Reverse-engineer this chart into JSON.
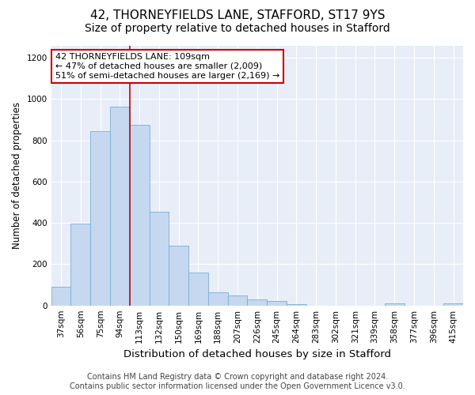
{
  "title": "42, THORNEYFIELDS LANE, STAFFORD, ST17 9YS",
  "subtitle": "Size of property relative to detached houses in Stafford",
  "xlabel": "Distribution of detached houses by size in Stafford",
  "ylabel": "Number of detached properties",
  "categories": [
    "37sqm",
    "56sqm",
    "75sqm",
    "94sqm",
    "113sqm",
    "132sqm",
    "150sqm",
    "169sqm",
    "188sqm",
    "207sqm",
    "226sqm",
    "245sqm",
    "264sqm",
    "283sqm",
    "302sqm",
    "321sqm",
    "339sqm",
    "358sqm",
    "377sqm",
    "396sqm",
    "415sqm"
  ],
  "values": [
    90,
    395,
    845,
    965,
    875,
    455,
    290,
    160,
    65,
    48,
    28,
    20,
    5,
    0,
    0,
    0,
    0,
    10,
    0,
    0,
    12
  ],
  "bar_color": "#c5d8f0",
  "bar_edge_color": "#7aadd4",
  "vline_color": "#cc0000",
  "vline_x_index": 4,
  "annotation_text": "42 THORNEYFIELDS LANE: 109sqm\n← 47% of detached houses are smaller (2,009)\n51% of semi-detached houses are larger (2,169) →",
  "annotation_box_facecolor": "white",
  "annotation_box_edgecolor": "#cc0000",
  "ylim": [
    0,
    1260
  ],
  "yticks": [
    0,
    200,
    400,
    600,
    800,
    1000,
    1200
  ],
  "fig_bg_color": "#ffffff",
  "plot_bg_color": "#e8eef8",
  "grid_color": "#ffffff",
  "footer_line1": "Contains HM Land Registry data © Crown copyright and database right 2024.",
  "footer_line2": "Contains public sector information licensed under the Open Government Licence v3.0.",
  "title_fontsize": 11,
  "subtitle_fontsize": 10,
  "xlabel_fontsize": 9.5,
  "ylabel_fontsize": 8.5,
  "tick_fontsize": 7.5,
  "annotation_fontsize": 8,
  "footer_fontsize": 7
}
